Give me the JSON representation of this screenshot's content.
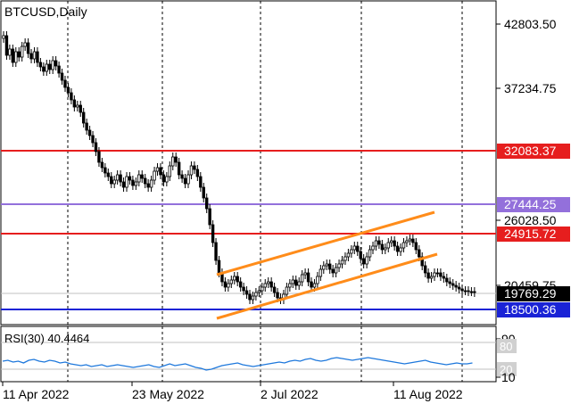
{
  "chart_title": "BTCUSD,Daily",
  "rsi_label": "RSI(30) 40.4464",
  "price_axis_ticks": [
    "42803.50",
    "37234.75",
    "26028.50",
    "20459.75"
  ],
  "rsi_axis_ticks": [
    "90",
    "10"
  ],
  "rsi_level_labels": [
    "80",
    "20"
  ],
  "date_labels": [
    "11 Apr 2022",
    "23 May 2022",
    "2 Jul 2022",
    "11 Aug 2022"
  ],
  "levels": [
    {
      "label": "32083.37",
      "color": "#e61e1e"
    },
    {
      "label": "27444.25",
      "color": "#9370db"
    },
    {
      "label": "24915.72",
      "color": "#e61e1e"
    },
    {
      "label": "19769.29",
      "color": "#000000"
    },
    {
      "label": "18500.36",
      "color": "#1a23d6"
    }
  ],
  "colors": {
    "channel": "#ff8c1a",
    "rsi_line": "#1e78dc",
    "grid": "#000000"
  },
  "chart_data": {
    "type": "candlestick",
    "title": "BTCUSD,Daily",
    "x": [
      "11 Apr 2022",
      "23 May 2022",
      "2 Jul 2022",
      "11 Aug 2022"
    ],
    "ylim": [
      17500,
      44500
    ],
    "horizontal_levels": [
      32083.37,
      27444.25,
      24915.72,
      19769.29,
      18500.36
    ],
    "channel": "ascending parallel channel",
    "indicator": {
      "name": "RSI(30)",
      "value": 40.4464,
      "levels": [
        80,
        20
      ],
      "range": [
        10,
        90
      ]
    }
  }
}
